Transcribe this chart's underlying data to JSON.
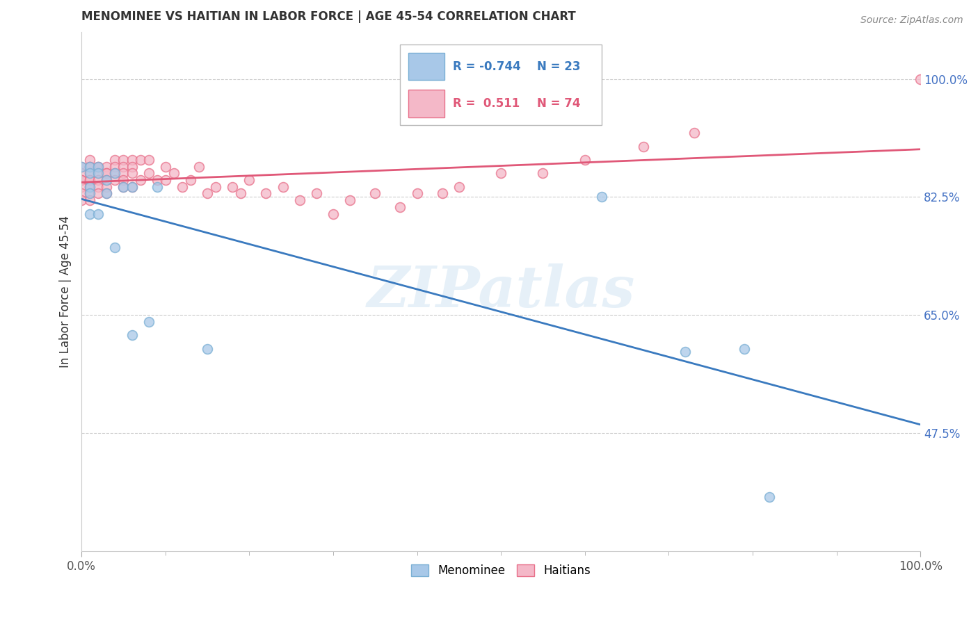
{
  "title": "MENOMINEE VS HAITIAN IN LABOR FORCE | AGE 45-54 CORRELATION CHART",
  "source_text": "Source: ZipAtlas.com",
  "ylabel": "In Labor Force | Age 45-54",
  "xlim": [
    0.0,
    1.0
  ],
  "ylim": [
    0.3,
    1.07
  ],
  "yticks": [
    0.475,
    0.65,
    0.825,
    1.0
  ],
  "ytick_labels": [
    "47.5%",
    "65.0%",
    "82.5%",
    "100.0%"
  ],
  "xticks": [
    0.0,
    1.0
  ],
  "xtick_labels": [
    "0.0%",
    "100.0%"
  ],
  "legend_r_menominee": "-0.744",
  "legend_n_menominee": "23",
  "legend_r_haitian": "0.511",
  "legend_n_haitian": "74",
  "menominee_color": "#a8c8e8",
  "menominee_edge_color": "#7aafd4",
  "haitian_color": "#f4b8c8",
  "haitian_edge_color": "#e8708a",
  "menominee_line_color": "#3a7abf",
  "haitian_line_color": "#e05878",
  "menominee_x": [
    0.0,
    0.01,
    0.01,
    0.01,
    0.01,
    0.01,
    0.02,
    0.02,
    0.02,
    0.03,
    0.03,
    0.04,
    0.04,
    0.05,
    0.06,
    0.06,
    0.08,
    0.09,
    0.62,
    0.72,
    0.79,
    0.82,
    0.15
  ],
  "menominee_y": [
    0.87,
    0.87,
    0.86,
    0.84,
    0.83,
    0.8,
    0.87,
    0.86,
    0.8,
    0.85,
    0.83,
    0.86,
    0.75,
    0.84,
    0.84,
    0.62,
    0.64,
    0.84,
    0.825,
    0.595,
    0.6,
    0.38,
    0.6
  ],
  "haitian_x": [
    0.0,
    0.0,
    0.0,
    0.0,
    0.0,
    0.0,
    0.0,
    0.01,
    0.01,
    0.01,
    0.01,
    0.01,
    0.01,
    0.01,
    0.01,
    0.01,
    0.02,
    0.02,
    0.02,
    0.02,
    0.02,
    0.02,
    0.03,
    0.03,
    0.03,
    0.03,
    0.03,
    0.03,
    0.04,
    0.04,
    0.04,
    0.04,
    0.05,
    0.05,
    0.05,
    0.05,
    0.05,
    0.06,
    0.06,
    0.06,
    0.06,
    0.07,
    0.07,
    0.08,
    0.08,
    0.09,
    0.1,
    0.1,
    0.11,
    0.12,
    0.13,
    0.14,
    0.15,
    0.16,
    0.18,
    0.19,
    0.2,
    0.22,
    0.24,
    0.26,
    0.28,
    0.3,
    0.32,
    0.35,
    0.38,
    0.4,
    0.43,
    0.45,
    0.5,
    0.55,
    0.6,
    0.67,
    0.73,
    1.0
  ],
  "haitian_y": [
    0.87,
    0.86,
    0.85,
    0.85,
    0.84,
    0.83,
    0.82,
    0.88,
    0.87,
    0.87,
    0.86,
    0.85,
    0.85,
    0.84,
    0.83,
    0.82,
    0.87,
    0.87,
    0.86,
    0.85,
    0.84,
    0.83,
    0.87,
    0.86,
    0.86,
    0.85,
    0.84,
    0.83,
    0.88,
    0.87,
    0.86,
    0.85,
    0.88,
    0.87,
    0.86,
    0.85,
    0.84,
    0.88,
    0.87,
    0.86,
    0.84,
    0.88,
    0.85,
    0.88,
    0.86,
    0.85,
    0.87,
    0.85,
    0.86,
    0.84,
    0.85,
    0.87,
    0.83,
    0.84,
    0.84,
    0.83,
    0.85,
    0.83,
    0.84,
    0.82,
    0.83,
    0.8,
    0.82,
    0.83,
    0.81,
    0.83,
    0.83,
    0.84,
    0.86,
    0.86,
    0.88,
    0.9,
    0.92,
    1.0
  ],
  "watermark_text": "ZIPatlas",
  "background_color": "#ffffff",
  "grid_color": "#cccccc",
  "marker_size": 100,
  "line_width": 2.0
}
